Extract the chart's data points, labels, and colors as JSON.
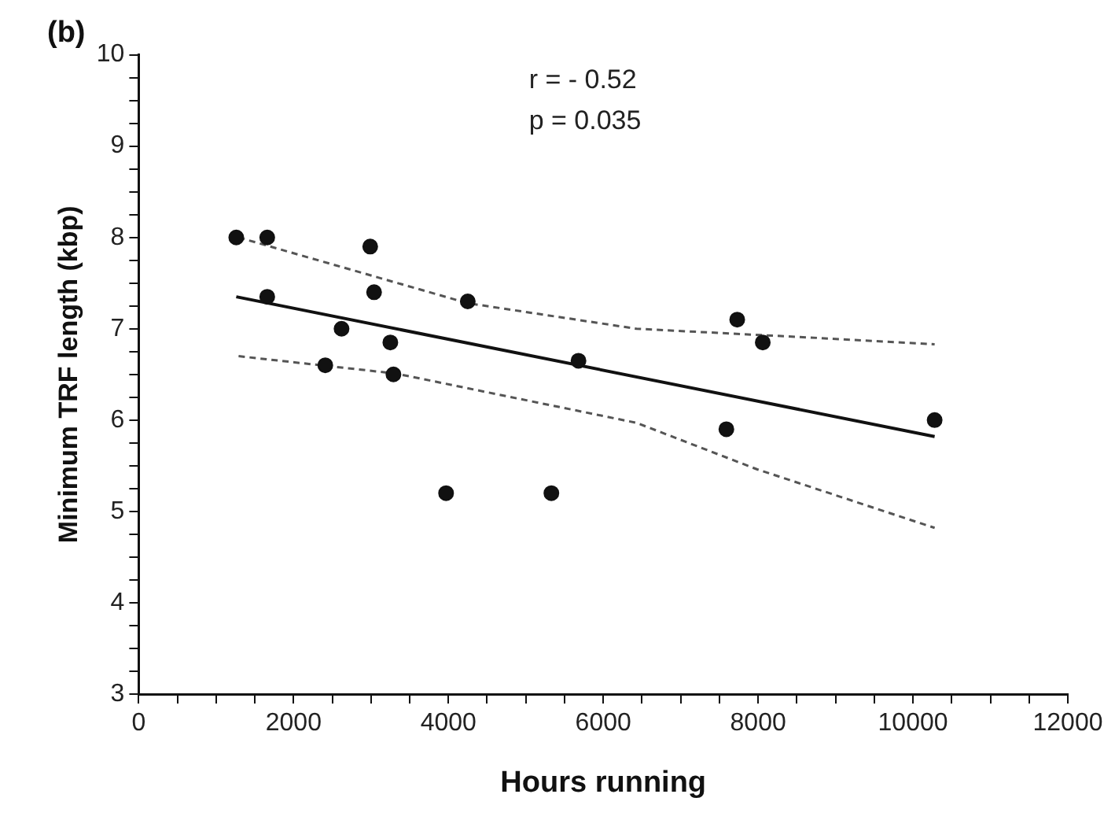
{
  "chart_data": {
    "type": "scatter",
    "title": "(b)",
    "xlabel": "Hours running",
    "ylabel": "Minimum TRF length (kbp)",
    "xlim": [
      0,
      12000
    ],
    "xticks": [
      0,
      {
        "value": 500,
        "label": null
      },
      {
        "value": 1000,
        "label": null
      },
      {
        "value": 1500,
        "label": null
      },
      2000,
      {
        "value": 2500,
        "label": null
      },
      {
        "value": 3000,
        "label": null
      },
      {
        "value": 3500,
        "label": null
      },
      4000,
      {
        "value": 4500,
        "label": null
      },
      {
        "value": 5000,
        "label": null
      },
      {
        "value": 5500,
        "label": null
      },
      6000,
      {
        "value": 6500,
        "label": null
      },
      {
        "value": 7000,
        "label": null
      },
      {
        "value": 7500,
        "label": null
      },
      8000,
      {
        "value": 8500,
        "label": null
      },
      {
        "value": 9000,
        "label": null
      },
      {
        "value": 9500,
        "label": null
      },
      10000,
      {
        "value": 10500,
        "label": null
      },
      {
        "value": 11000,
        "label": null
      },
      {
        "value": 11500,
        "label": null
      },
      12000
    ],
    "ylim": [
      3,
      10
    ],
    "yticks": [
      3,
      {
        "value": 3.25,
        "label": null
      },
      {
        "value": 3.5,
        "label": null
      },
      {
        "value": 3.75,
        "label": null
      },
      4,
      {
        "value": 4.25,
        "label": null
      },
      {
        "value": 4.5,
        "label": null
      },
      {
        "value": 4.75,
        "label": null
      },
      5,
      {
        "value": 5.25,
        "label": null
      },
      {
        "value": 5.5,
        "label": null
      },
      {
        "value": 5.75,
        "label": null
      },
      6,
      {
        "value": 6.25,
        "label": null
      },
      {
        "value": 6.5,
        "label": null
      },
      {
        "value": 6.75,
        "label": null
      },
      7,
      {
        "value": 7.25,
        "label": null
      },
      {
        "value": 7.5,
        "label": null
      },
      {
        "value": 7.75,
        "label": null
      },
      8,
      {
        "value": 8.25,
        "label": null
      },
      {
        "value": 8.5,
        "label": null
      },
      {
        "value": 8.75,
        "label": null
      },
      9,
      {
        "value": 9.25,
        "label": null
      },
      {
        "value": 9.5,
        "label": null
      },
      {
        "value": 9.75,
        "label": null
      },
      10
    ],
    "grid": false,
    "legend": false,
    "annotations": [
      "r = - 0.52",
      "p = 0.035"
    ],
    "series": [
      {
        "marker": "circle",
        "color": "#111111",
        "x": [
          1260,
          1660,
          1660,
          2990,
          3040,
          2620,
          2410,
          3250,
          3290,
          4250,
          5680,
          7730,
          8060,
          7590,
          10280,
          3970,
          5330
        ],
        "values": [
          8.0,
          8.0,
          7.35,
          7.9,
          7.4,
          7.0,
          6.6,
          6.85,
          6.5,
          7.3,
          6.65,
          7.1,
          6.85,
          5.9,
          6.0,
          5.2,
          5.2
        ]
      },
      {
        "type": "line",
        "marker": "none",
        "line_style": "solid",
        "color": "#111111",
        "x": [
          1260,
          10280
        ],
        "values": [
          7.35,
          5.82
        ]
      },
      {
        "type": "line",
        "marker": "none",
        "line_style": "dashed",
        "color": "#555555",
        "x": [
          1290,
          4250,
          6430,
          8760,
          10280
        ],
        "values": [
          8.0,
          7.28,
          7.0,
          6.9,
          6.83
        ]
      },
      {
        "type": "line",
        "marker": "none",
        "line_style": "dashed",
        "color": "#555555",
        "x": [
          1290,
          3320,
          6430,
          7990,
          10280
        ],
        "values": [
          6.7,
          6.51,
          5.97,
          5.46,
          4.82
        ]
      }
    ]
  }
}
